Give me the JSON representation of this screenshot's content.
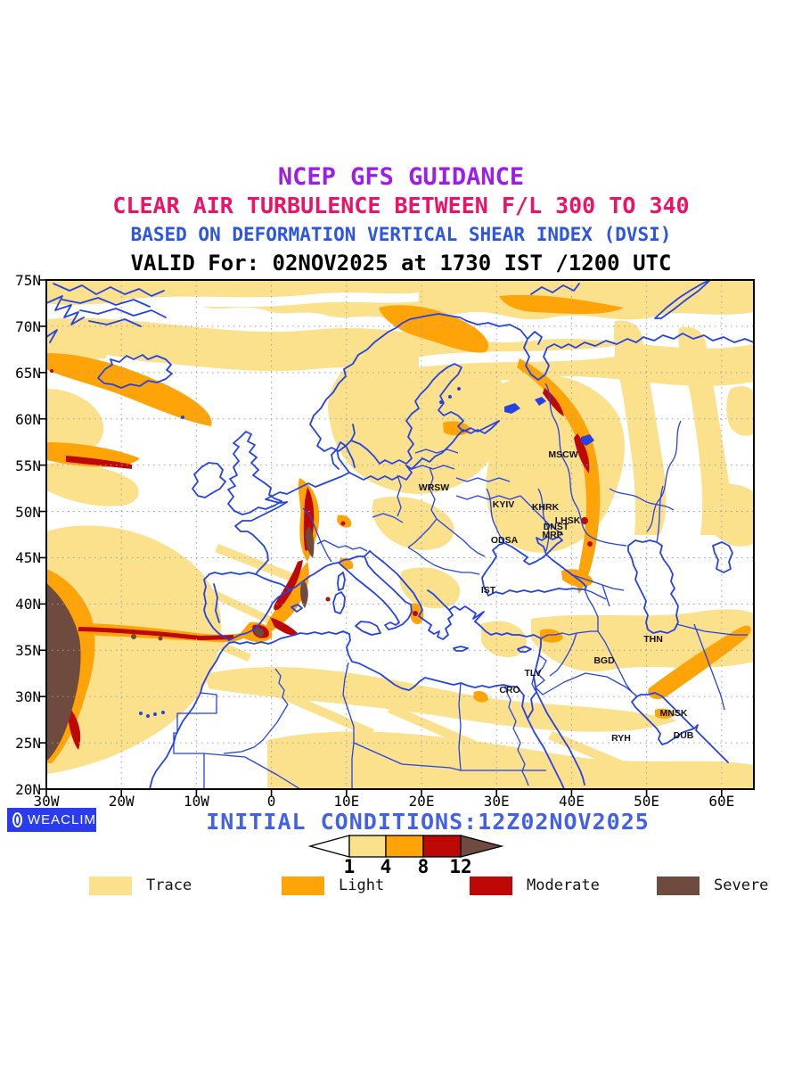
{
  "header": {
    "line1": {
      "text": "NCEP GFS GUIDANCE",
      "color": "#9B1FE8"
    },
    "line2": {
      "text": "CLEAR AIR TURBULENCE BETWEEN F/L 300 TO 340",
      "color": "#EE1166"
    },
    "line3": {
      "text": "BASED ON DEFORMATION VERTICAL SHEAR INDEX (DVSI)",
      "color": "#2B55E2"
    },
    "line4": {
      "text": "VALID For: 02NOV2025 at 1730 IST /1200 UTC",
      "color": "#000000"
    }
  },
  "map": {
    "lat_labels": [
      "75N",
      "70N",
      "65N",
      "60N",
      "55N",
      "50N",
      "45N",
      "40N",
      "35N",
      "30N",
      "25N",
      "20N"
    ],
    "lon_labels": [
      "30W",
      "20W",
      "10W",
      "0",
      "10E",
      "20E",
      "30E",
      "40E",
      "50E",
      "60E"
    ],
    "city_labels": [
      "MSCW",
      "WRSW",
      "KYIV",
      "KHRK",
      "LHSK",
      "DNST",
      "MRP",
      "ODSA",
      "IST",
      "THN",
      "BGD",
      "TLV",
      "CRO",
      "MNSK",
      "RYH",
      "DUB"
    ],
    "colors": {
      "coastline": "#2442E6",
      "trace": "#FBE18C",
      "light": "#FFA408",
      "moderate": "#BE0806",
      "severe": "#6E4B3E",
      "grid": "#A0A0A8",
      "frame": "#000000"
    }
  },
  "footer": {
    "brand": "WEACLIM",
    "initial_conditions": "INITIAL CONDITIONS:12Z02NOV2025",
    "initial_conditions_color": "#4361E8",
    "scale_values": [
      "1",
      "4",
      "8",
      "12"
    ],
    "legend": [
      {
        "label": "Trace",
        "color": "#FBE18C"
      },
      {
        "label": "Light",
        "color": "#FFA408"
      },
      {
        "label": "Moderate",
        "color": "#BE0806"
      },
      {
        "label": "Severe",
        "color": "#6E4B3E"
      }
    ]
  }
}
